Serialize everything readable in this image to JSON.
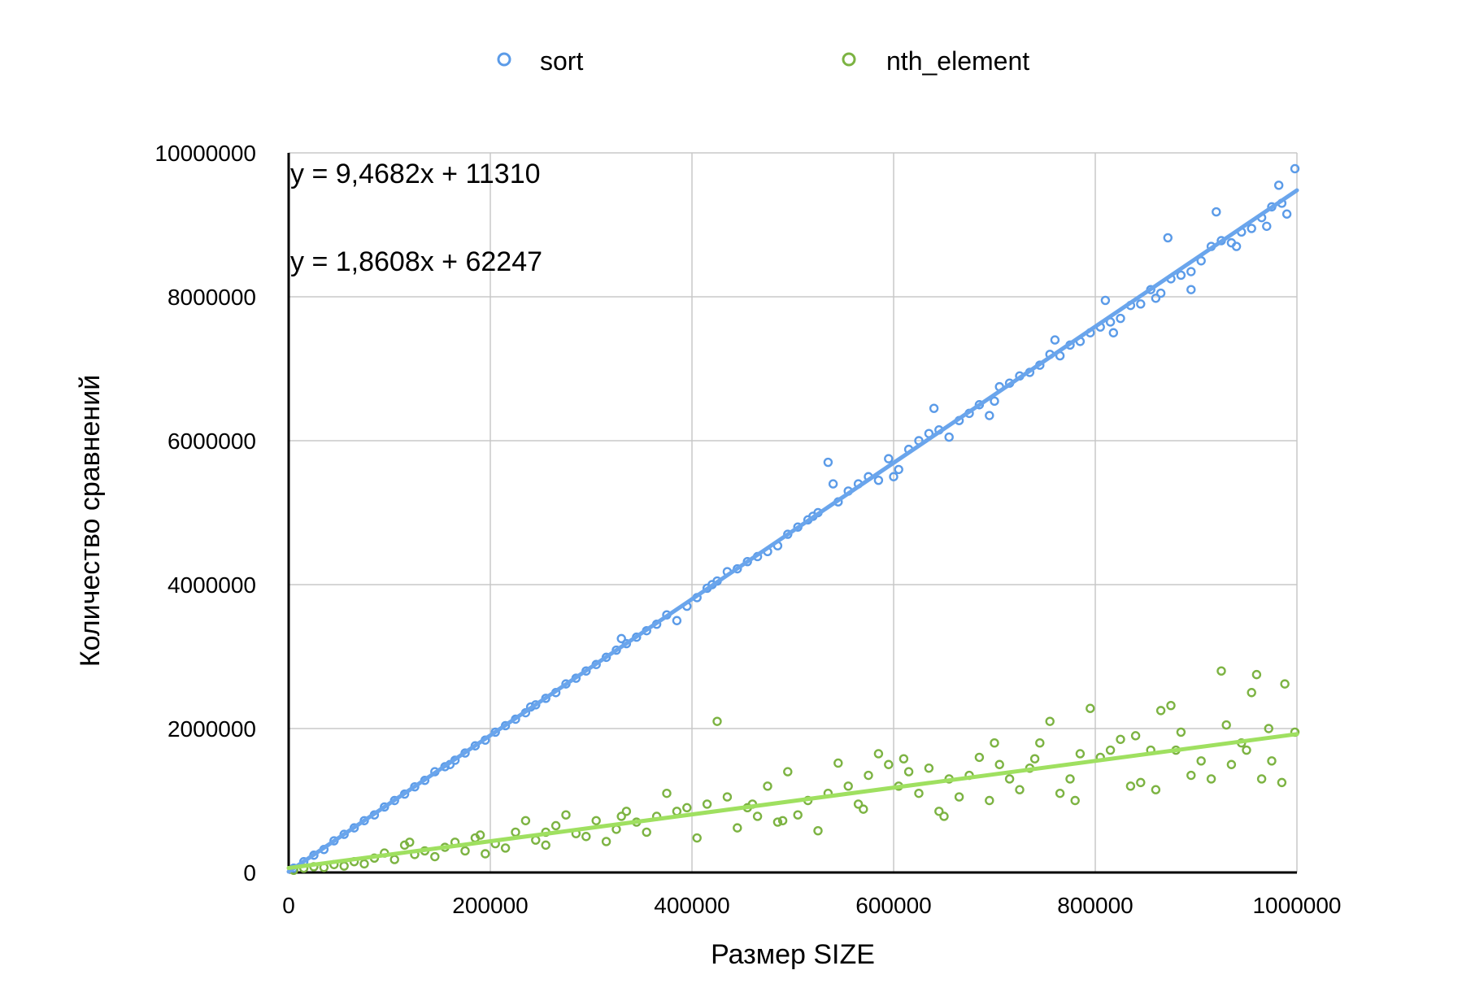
{
  "chart_data": {
    "type": "scatter",
    "xlabel": "Размер SIZE",
    "ylabel": "Количество сравнений",
    "xlim": [
      0,
      1000000
    ],
    "ylim": [
      0,
      10000000
    ],
    "x_ticks": [
      0,
      200000,
      400000,
      600000,
      800000,
      1000000
    ],
    "x_tick_labels": [
      "0",
      "200000",
      "400000",
      "600000",
      "800000",
      "1000000"
    ],
    "y_ticks": [
      0,
      2000000,
      4000000,
      6000000,
      8000000,
      10000000
    ],
    "y_tick_labels": [
      "0",
      "2000000",
      "4000000",
      "6000000",
      "8000000",
      "10000000"
    ],
    "grid": true,
    "legend_position": "top",
    "series": [
      {
        "name": "sort",
        "color": "#5b9be8",
        "trend_color": "#6aa5ec",
        "marker": "open-circle",
        "equation": "y = 9,4682x + 11310",
        "trendline": {
          "slope": 9.4682,
          "intercept": 11310
        },
        "points": [
          [
            5000,
            60000
          ],
          [
            15000,
            150000
          ],
          [
            25000,
            240000
          ],
          [
            35000,
            320000
          ],
          [
            45000,
            440000
          ],
          [
            55000,
            530000
          ],
          [
            65000,
            620000
          ],
          [
            75000,
            720000
          ],
          [
            85000,
            800000
          ],
          [
            95000,
            910000
          ],
          [
            105000,
            1000000
          ],
          [
            115000,
            1090000
          ],
          [
            125000,
            1190000
          ],
          [
            135000,
            1280000
          ],
          [
            145000,
            1400000
          ],
          [
            155000,
            1470000
          ],
          [
            165000,
            1560000
          ],
          [
            175000,
            1660000
          ],
          [
            185000,
            1760000
          ],
          [
            195000,
            1840000
          ],
          [
            205000,
            1950000
          ],
          [
            215000,
            2040000
          ],
          [
            225000,
            2130000
          ],
          [
            235000,
            2220000
          ],
          [
            245000,
            2330000
          ],
          [
            255000,
            2420000
          ],
          [
            265000,
            2500000
          ],
          [
            275000,
            2620000
          ],
          [
            285000,
            2700000
          ],
          [
            295000,
            2800000
          ],
          [
            305000,
            2890000
          ],
          [
            315000,
            2990000
          ],
          [
            325000,
            3090000
          ],
          [
            335000,
            3180000
          ],
          [
            345000,
            3270000
          ],
          [
            355000,
            3360000
          ],
          [
            365000,
            3450000
          ],
          [
            375000,
            3580000
          ],
          [
            385000,
            3500000
          ],
          [
            395000,
            3700000
          ],
          [
            405000,
            3820000
          ],
          [
            415000,
            3950000
          ],
          [
            425000,
            4050000
          ],
          [
            435000,
            4180000
          ],
          [
            445000,
            4220000
          ],
          [
            455000,
            4320000
          ],
          [
            465000,
            4390000
          ],
          [
            475000,
            4460000
          ],
          [
            485000,
            4540000
          ],
          [
            495000,
            4700000
          ],
          [
            505000,
            4800000
          ],
          [
            515000,
            4900000
          ],
          [
            525000,
            5000000
          ],
          [
            535000,
            5700000
          ],
          [
            545000,
            5150000
          ],
          [
            555000,
            5300000
          ],
          [
            565000,
            5400000
          ],
          [
            575000,
            5500000
          ],
          [
            585000,
            5450000
          ],
          [
            595000,
            5750000
          ],
          [
            605000,
            5600000
          ],
          [
            615000,
            5880000
          ],
          [
            625000,
            6000000
          ],
          [
            635000,
            6100000
          ],
          [
            645000,
            6150000
          ],
          [
            655000,
            6050000
          ],
          [
            665000,
            6280000
          ],
          [
            675000,
            6380000
          ],
          [
            685000,
            6500000
          ],
          [
            695000,
            6350000
          ],
          [
            705000,
            6750000
          ],
          [
            715000,
            6800000
          ],
          [
            725000,
            6900000
          ],
          [
            735000,
            6950000
          ],
          [
            745000,
            7050000
          ],
          [
            755000,
            7200000
          ],
          [
            765000,
            7180000
          ],
          [
            775000,
            7330000
          ],
          [
            785000,
            7380000
          ],
          [
            795000,
            7500000
          ],
          [
            805000,
            7580000
          ],
          [
            815000,
            7650000
          ],
          [
            825000,
            7700000
          ],
          [
            835000,
            7880000
          ],
          [
            845000,
            7900000
          ],
          [
            855000,
            8100000
          ],
          [
            865000,
            8050000
          ],
          [
            875000,
            8250000
          ],
          [
            885000,
            8300000
          ],
          [
            895000,
            8350000
          ],
          [
            905000,
            8500000
          ],
          [
            915000,
            8700000
          ],
          [
            925000,
            8780000
          ],
          [
            935000,
            8750000
          ],
          [
            945000,
            8900000
          ],
          [
            955000,
            8950000
          ],
          [
            965000,
            9100000
          ],
          [
            975000,
            9250000
          ],
          [
            985000,
            9300000
          ],
          [
            998000,
            9780000
          ],
          [
            160000,
            1500000
          ],
          [
            240000,
            2300000
          ],
          [
            330000,
            3250000
          ],
          [
            420000,
            4000000
          ],
          [
            520000,
            4950000
          ],
          [
            600000,
            5500000
          ],
          [
            640000,
            6450000
          ],
          [
            700000,
            6550000
          ],
          [
            760000,
            7400000
          ],
          [
            810000,
            7950000
          ],
          [
            860000,
            7980000
          ],
          [
            872000,
            8820000
          ],
          [
            895000,
            8100000
          ],
          [
            920000,
            9180000
          ],
          [
            940000,
            8700000
          ],
          [
            970000,
            8980000
          ],
          [
            982000,
            9550000
          ],
          [
            990000,
            9150000
          ],
          [
            818000,
            7500000
          ],
          [
            540000,
            5400000
          ]
        ]
      },
      {
        "name": "nth_element",
        "color": "#7cb342",
        "trend_color": "#9fe060",
        "marker": "open-circle",
        "equation": "y = 1,8608x + 62247",
        "trendline": {
          "slope": 1.8608,
          "intercept": 62247
        },
        "points": [
          [
            5000,
            30000
          ],
          [
            15000,
            60000
          ],
          [
            25000,
            80000
          ],
          [
            35000,
            70000
          ],
          [
            45000,
            110000
          ],
          [
            55000,
            90000
          ],
          [
            65000,
            150000
          ],
          [
            75000,
            120000
          ],
          [
            85000,
            200000
          ],
          [
            95000,
            270000
          ],
          [
            105000,
            180000
          ],
          [
            115000,
            380000
          ],
          [
            125000,
            250000
          ],
          [
            135000,
            300000
          ],
          [
            145000,
            220000
          ],
          [
            155000,
            350000
          ],
          [
            165000,
            420000
          ],
          [
            175000,
            300000
          ],
          [
            185000,
            480000
          ],
          [
            195000,
            260000
          ],
          [
            205000,
            400000
          ],
          [
            215000,
            340000
          ],
          [
            225000,
            560000
          ],
          [
            235000,
            720000
          ],
          [
            245000,
            450000
          ],
          [
            255000,
            380000
          ],
          [
            265000,
            650000
          ],
          [
            275000,
            800000
          ],
          [
            285000,
            540000
          ],
          [
            295000,
            500000
          ],
          [
            305000,
            720000
          ],
          [
            315000,
            430000
          ],
          [
            325000,
            600000
          ],
          [
            335000,
            850000
          ],
          [
            345000,
            700000
          ],
          [
            355000,
            560000
          ],
          [
            365000,
            780000
          ],
          [
            375000,
            1100000
          ],
          [
            385000,
            850000
          ],
          [
            395000,
            900000
          ],
          [
            405000,
            480000
          ],
          [
            415000,
            950000
          ],
          [
            425000,
            2100000
          ],
          [
            435000,
            1050000
          ],
          [
            445000,
            620000
          ],
          [
            455000,
            900000
          ],
          [
            465000,
            780000
          ],
          [
            475000,
            1200000
          ],
          [
            485000,
            700000
          ],
          [
            495000,
            1400000
          ],
          [
            505000,
            800000
          ],
          [
            515000,
            1000000
          ],
          [
            525000,
            580000
          ],
          [
            535000,
            1100000
          ],
          [
            545000,
            1520000
          ],
          [
            555000,
            1200000
          ],
          [
            565000,
            950000
          ],
          [
            575000,
            1350000
          ],
          [
            585000,
            1650000
          ],
          [
            595000,
            1500000
          ],
          [
            605000,
            1200000
          ],
          [
            615000,
            1400000
          ],
          [
            625000,
            1100000
          ],
          [
            635000,
            1450000
          ],
          [
            645000,
            850000
          ],
          [
            655000,
            1300000
          ],
          [
            665000,
            1050000
          ],
          [
            675000,
            1350000
          ],
          [
            685000,
            1600000
          ],
          [
            695000,
            1000000
          ],
          [
            705000,
            1500000
          ],
          [
            715000,
            1300000
          ],
          [
            725000,
            1150000
          ],
          [
            735000,
            1450000
          ],
          [
            745000,
            1800000
          ],
          [
            755000,
            2100000
          ],
          [
            765000,
            1100000
          ],
          [
            775000,
            1300000
          ],
          [
            785000,
            1650000
          ],
          [
            795000,
            2280000
          ],
          [
            805000,
            1600000
          ],
          [
            815000,
            1700000
          ],
          [
            825000,
            1850000
          ],
          [
            835000,
            1200000
          ],
          [
            845000,
            1250000
          ],
          [
            855000,
            1700000
          ],
          [
            865000,
            2250000
          ],
          [
            875000,
            2320000
          ],
          [
            885000,
            1950000
          ],
          [
            895000,
            1350000
          ],
          [
            905000,
            1550000
          ],
          [
            915000,
            1300000
          ],
          [
            925000,
            2800000
          ],
          [
            935000,
            1500000
          ],
          [
            945000,
            1800000
          ],
          [
            955000,
            2500000
          ],
          [
            965000,
            1300000
          ],
          [
            975000,
            1550000
          ],
          [
            985000,
            1250000
          ],
          [
            998000,
            1950000
          ],
          [
            120000,
            420000
          ],
          [
            190000,
            520000
          ],
          [
            255000,
            560000
          ],
          [
            330000,
            780000
          ],
          [
            460000,
            950000
          ],
          [
            490000,
            720000
          ],
          [
            570000,
            880000
          ],
          [
            610000,
            1580000
          ],
          [
            650000,
            780000
          ],
          [
            700000,
            1800000
          ],
          [
            740000,
            1580000
          ],
          [
            780000,
            1000000
          ],
          [
            840000,
            1900000
          ],
          [
            880000,
            1700000
          ],
          [
            950000,
            1700000
          ],
          [
            960000,
            2750000
          ],
          [
            972000,
            2000000
          ],
          [
            988000,
            2620000
          ],
          [
            930000,
            2050000
          ],
          [
            860000,
            1150000
          ]
        ]
      }
    ]
  }
}
